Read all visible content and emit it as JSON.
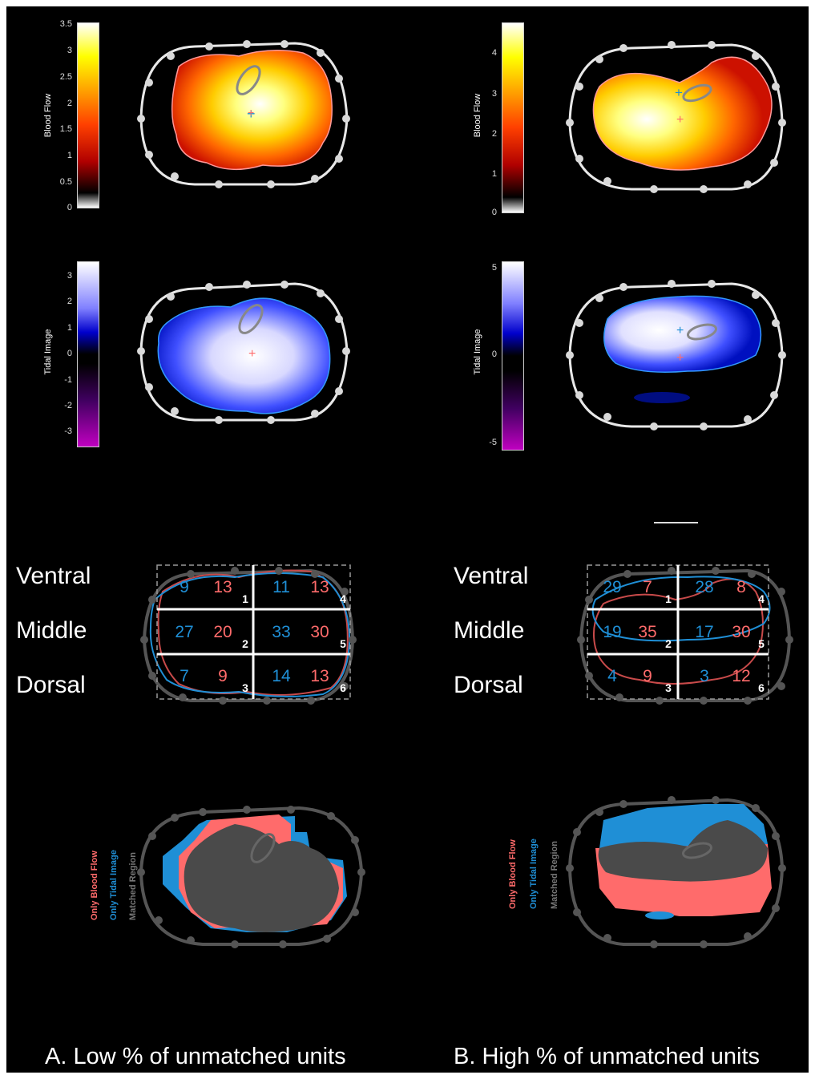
{
  "panel_a": {
    "colorbar_blood": {
      "label": "Blood Flow",
      "ticks": [
        "3.5",
        "3",
        "2.5",
        "2",
        "1.5",
        "1",
        "0.5",
        "0"
      ]
    },
    "colorbar_tidal": {
      "label": "Tidal Image",
      "ticks": [
        "3",
        "2",
        "1",
        "0",
        "-1",
        "-2",
        "-3"
      ]
    },
    "rows": [
      "Ventral",
      "Middle",
      "Dorsal"
    ],
    "grid": [
      {
        "id": "1",
        "blue": "9",
        "red": "13"
      },
      {
        "id": "4",
        "blue": "11",
        "red": "13"
      },
      {
        "id": "2",
        "blue": "27",
        "red": "20"
      },
      {
        "id": "5",
        "blue": "33",
        "red": "30"
      },
      {
        "id": "3",
        "blue": "7",
        "red": "9"
      },
      {
        "id": "6",
        "blue": "14",
        "red": "13"
      }
    ],
    "legend": [
      "Only Blood Flow",
      "Only Tidal Image",
      "Matched Region"
    ],
    "caption": "A. Low % of unmatched units"
  },
  "panel_b": {
    "colorbar_blood": {
      "label": "Blood Flow",
      "ticks": [
        "4",
        "3",
        "2",
        "1",
        "0"
      ]
    },
    "colorbar_tidal": {
      "label": "Tidal Image",
      "ticks": [
        "5",
        "0",
        "-5"
      ]
    },
    "rows": [
      "Ventral",
      "Middle",
      "Dorsal"
    ],
    "grid": [
      {
        "id": "1",
        "blue": "29",
        "red": "7"
      },
      {
        "id": "4",
        "blue": "28",
        "red": "8"
      },
      {
        "id": "2",
        "blue": "19",
        "red": "35"
      },
      {
        "id": "5",
        "blue": "17",
        "red": "30"
      },
      {
        "id": "3",
        "blue": "4",
        "red": "9"
      },
      {
        "id": "6",
        "blue": "3",
        "red": "12"
      }
    ],
    "legend": [
      "Only Blood Flow",
      "Only Tidal Image",
      "Matched Region"
    ],
    "caption": "B. High % of unmatched units"
  },
  "colors": {
    "blood": "#ff6b6b",
    "tidal": "#1f8fd6",
    "matched": "#4a4a4a",
    "electrode": "#d9d9d9"
  }
}
